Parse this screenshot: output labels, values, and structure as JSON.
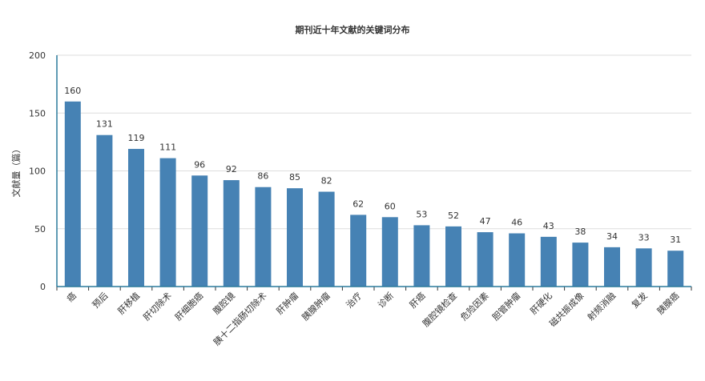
{
  "chart_data": {
    "type": "bar",
    "title": "期刊近十年文献的关键词分布",
    "xlabel": "",
    "ylabel": "文献量（篇）",
    "ylim": [
      0,
      200
    ],
    "yticks": [
      0,
      50,
      100,
      150,
      200
    ],
    "grid": true,
    "legend": "none",
    "bar_color": "#4682b4",
    "categories": [
      "癌",
      "预后",
      "肝移植",
      "肝切除术",
      "肝细胞癌",
      "腹腔镜",
      "胰十二指肠切除术",
      "肝肿瘤",
      "胰腺肿瘤",
      "治疗",
      "诊断",
      "肝癌",
      "腹腔镜检查",
      "危险因素",
      "胆管肿瘤",
      "肝硬化",
      "磁共振成像",
      "射频消融",
      "复发",
      "胰腺癌"
    ],
    "values": [
      160,
      131,
      119,
      111,
      96,
      92,
      86,
      85,
      82,
      62,
      60,
      53,
      52,
      47,
      46,
      43,
      38,
      34,
      33,
      31
    ]
  }
}
